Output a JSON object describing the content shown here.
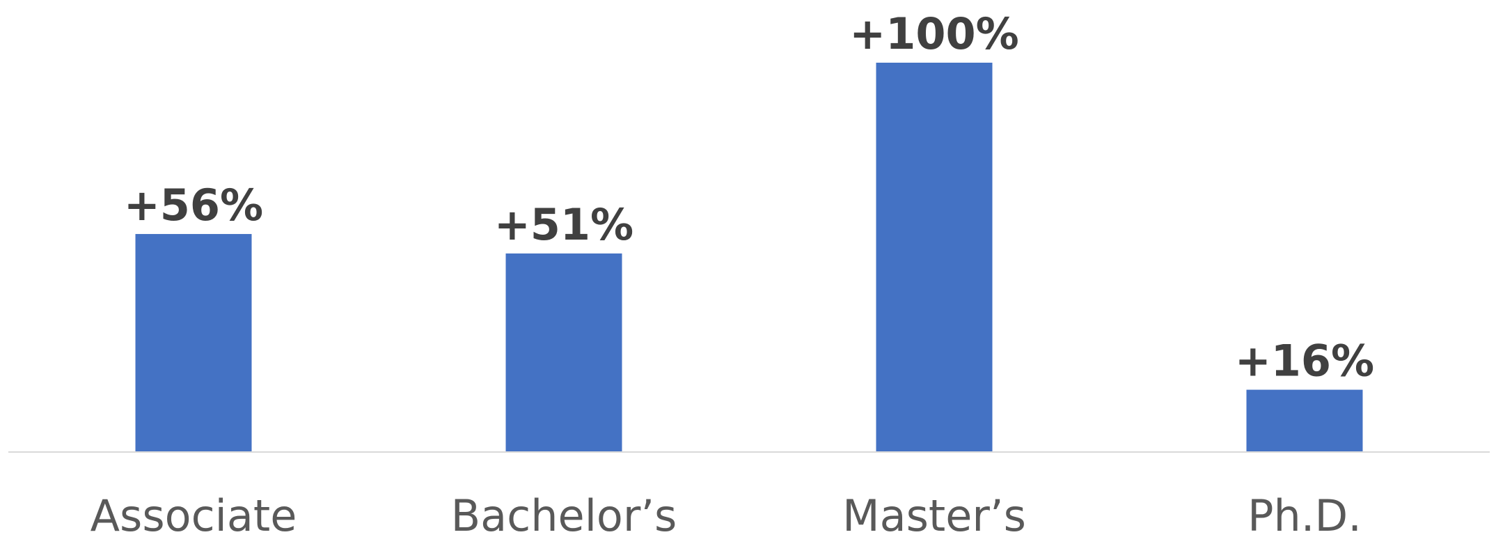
{
  "chart_data": {
    "type": "bar",
    "categories": [
      "Associate",
      "Bachelor’s",
      "Master’s",
      "Ph.D."
    ],
    "values": [
      56,
      51,
      100,
      16
    ],
    "data_labels": [
      "+56%",
      "+51%",
      "+100%",
      "+16%"
    ],
    "title": "",
    "xlabel": "",
    "ylabel": "",
    "ylim": [
      0,
      100
    ],
    "grid": false,
    "legend": "none",
    "colors": {
      "bar": "#4472C4",
      "axis": "#d9d9d9",
      "data_label": "#404040",
      "tick_label": "#595959"
    }
  }
}
